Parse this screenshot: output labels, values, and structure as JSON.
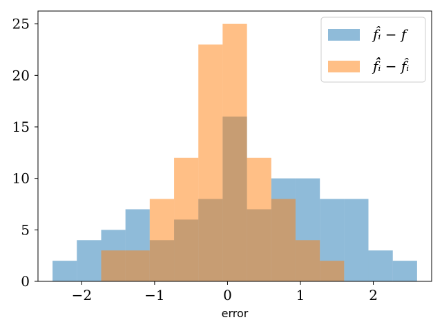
{
  "chart_data": {
    "type": "bar",
    "title": "",
    "xlabel": "error",
    "ylabel": "",
    "xlim": [
      -2.6,
      2.8
    ],
    "ylim": [
      0,
      26.25
    ],
    "grid": false,
    "legend_position": "top-right",
    "xticks": [
      -2,
      -1,
      0,
      1,
      2
    ],
    "xtick_labels": [
      "−2",
      "−1",
      "0",
      "1",
      "2"
    ],
    "yticks": [
      0,
      5,
      10,
      15,
      20,
      25
    ],
    "ytick_labels": [
      "0",
      "5",
      "10",
      "15",
      "20",
      "25"
    ],
    "series": [
      {
        "name": "f̂ᵢ − f",
        "color": "#1f77b4",
        "bin_edges": [
          -2.4,
          -2.067,
          -1.733,
          -1.4,
          -1.067,
          -0.733,
          -0.4,
          -0.067,
          0.267,
          0.6,
          0.933,
          1.267,
          1.6,
          1.933,
          2.267,
          2.6
        ],
        "values": [
          2,
          4,
          5,
          7,
          4,
          6,
          8,
          16,
          7,
          10,
          10,
          8,
          8,
          3,
          2
        ]
      },
      {
        "name": "f̂̂ᵢ − f̂ᵢ",
        "color": "#ff7f0e",
        "bin_edges": [
          -1.733,
          -1.4,
          -1.067,
          -0.733,
          -0.4,
          -0.067,
          0.267,
          0.6,
          0.933,
          1.267,
          1.6
        ],
        "values": [
          3,
          3,
          8,
          12,
          23,
          25,
          12,
          8,
          4,
          2
        ]
      }
    ]
  }
}
